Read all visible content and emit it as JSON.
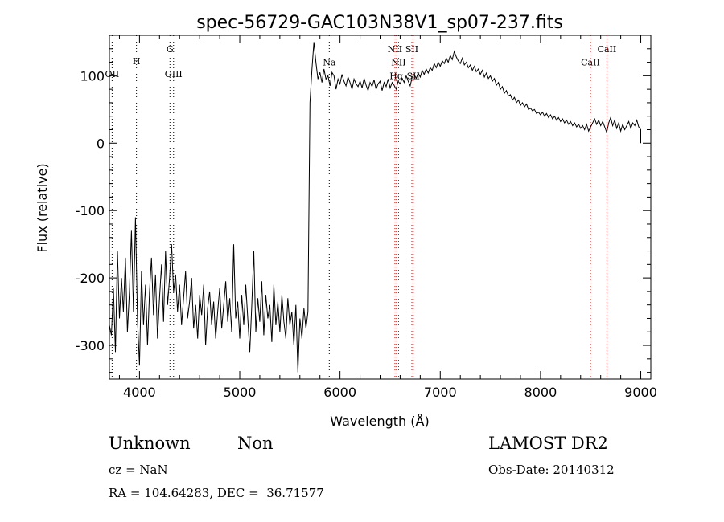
{
  "chart_data": {
    "type": "line",
    "title": "spec-56729-GAC103N38V1_sp07-237.fits",
    "xlabel": "Wavelength (Å)",
    "ylabel": "Flux (relative)",
    "xlim": [
      3700,
      9100
    ],
    "ylim": [
      -350,
      160
    ],
    "xticks": [
      4000,
      5000,
      6000,
      7000,
      8000,
      9000
    ],
    "yticks": [
      -300,
      -200,
      -100,
      0,
      100
    ],
    "grid": false,
    "series": [
      {
        "points": [
          [
            3700,
            -270
          ],
          [
            3720,
            -285
          ],
          [
            3740,
            -215
          ],
          [
            3760,
            -310
          ],
          [
            3780,
            -160
          ],
          [
            3800,
            -260
          ],
          [
            3820,
            -200
          ],
          [
            3840,
            -250
          ],
          [
            3860,
            -170
          ],
          [
            3880,
            -280
          ],
          [
            3900,
            -220
          ],
          [
            3920,
            -130
          ],
          [
            3940,
            -250
          ],
          [
            3960,
            -110
          ],
          [
            3980,
            -260
          ],
          [
            4000,
            -330
          ],
          [
            4020,
            -190
          ],
          [
            4040,
            -270
          ],
          [
            4060,
            -210
          ],
          [
            4080,
            -300
          ],
          [
            4100,
            -220
          ],
          [
            4120,
            -170
          ],
          [
            4140,
            -255
          ],
          [
            4160,
            -195
          ],
          [
            4180,
            -290
          ],
          [
            4200,
            -230
          ],
          [
            4220,
            -180
          ],
          [
            4240,
            -265
          ],
          [
            4260,
            -160
          ],
          [
            4280,
            -240
          ],
          [
            4300,
            -200
          ],
          [
            4320,
            -150
          ],
          [
            4340,
            -220
          ],
          [
            4360,
            -195
          ],
          [
            4380,
            -250
          ],
          [
            4400,
            -210
          ],
          [
            4420,
            -270
          ],
          [
            4440,
            -230
          ],
          [
            4460,
            -190
          ],
          [
            4480,
            -260
          ],
          [
            4500,
            -235
          ],
          [
            4520,
            -200
          ],
          [
            4540,
            -275
          ],
          [
            4560,
            -240
          ],
          [
            4580,
            -290
          ],
          [
            4600,
            -225
          ],
          [
            4620,
            -255
          ],
          [
            4640,
            -210
          ],
          [
            4660,
            -300
          ],
          [
            4680,
            -245
          ],
          [
            4700,
            -220
          ],
          [
            4720,
            -270
          ],
          [
            4740,
            -235
          ],
          [
            4760,
            -290
          ],
          [
            4780,
            -250
          ],
          [
            4800,
            -215
          ],
          [
            4820,
            -275
          ],
          [
            4840,
            -240
          ],
          [
            4860,
            -205
          ],
          [
            4880,
            -265
          ],
          [
            4900,
            -230
          ],
          [
            4920,
            -280
          ],
          [
            4940,
            -150
          ],
          [
            4960,
            -260
          ],
          [
            4980,
            -235
          ],
          [
            5000,
            -290
          ],
          [
            5020,
            -225
          ],
          [
            5040,
            -270
          ],
          [
            5060,
            -210
          ],
          [
            5080,
            -260
          ],
          [
            5100,
            -310
          ],
          [
            5120,
            -240
          ],
          [
            5140,
            -160
          ],
          [
            5160,
            -280
          ],
          [
            5180,
            -230
          ],
          [
            5200,
            -265
          ],
          [
            5220,
            -205
          ],
          [
            5240,
            -285
          ],
          [
            5260,
            -225
          ],
          [
            5280,
            -260
          ],
          [
            5300,
            -240
          ],
          [
            5320,
            -295
          ],
          [
            5340,
            -210
          ],
          [
            5360,
            -270
          ],
          [
            5380,
            -235
          ],
          [
            5400,
            -280
          ],
          [
            5420,
            -225
          ],
          [
            5440,
            -265
          ],
          [
            5460,
            -290
          ],
          [
            5480,
            -230
          ],
          [
            5500,
            -270
          ],
          [
            5520,
            -250
          ],
          [
            5540,
            -300
          ],
          [
            5560,
            -240
          ],
          [
            5580,
            -340
          ],
          [
            5600,
            -260
          ],
          [
            5620,
            -290
          ],
          [
            5640,
            -245
          ],
          [
            5660,
            -275
          ],
          [
            5680,
            -250
          ],
          [
            5700,
            60
          ],
          [
            5720,
            110
          ],
          [
            5740,
            150
          ],
          [
            5760,
            120
          ],
          [
            5780,
            95
          ],
          [
            5800,
            105
          ],
          [
            5820,
            90
          ],
          [
            5840,
            110
          ],
          [
            5860,
            95
          ],
          [
            5880,
            100
          ],
          [
            5900,
            85
          ],
          [
            5920,
            105
          ],
          [
            5940,
            100
          ],
          [
            5960,
            80
          ],
          [
            5980,
            95
          ],
          [
            6000,
            88
          ],
          [
            6020,
            102
          ],
          [
            6040,
            92
          ],
          [
            6060,
            85
          ],
          [
            6080,
            98
          ],
          [
            6100,
            90
          ],
          [
            6120,
            80
          ],
          [
            6140,
            95
          ],
          [
            6160,
            88
          ],
          [
            6180,
            84
          ],
          [
            6200,
            92
          ],
          [
            6220,
            82
          ],
          [
            6240,
            96
          ],
          [
            6260,
            86
          ],
          [
            6280,
            78
          ],
          [
            6300,
            90
          ],
          [
            6320,
            84
          ],
          [
            6340,
            94
          ],
          [
            6360,
            80
          ],
          [
            6380,
            88
          ],
          [
            6400,
            92
          ],
          [
            6420,
            78
          ],
          [
            6440,
            90
          ],
          [
            6460,
            84
          ],
          [
            6480,
            95
          ],
          [
            6500,
            82
          ],
          [
            6520,
            90
          ],
          [
            6540,
            86
          ],
          [
            6560,
            80
          ],
          [
            6580,
            92
          ],
          [
            6600,
            88
          ],
          [
            6620,
            96
          ],
          [
            6640,
            90
          ],
          [
            6660,
            100
          ],
          [
            6680,
            92
          ],
          [
            6700,
            85
          ],
          [
            6720,
            98
          ],
          [
            6740,
            102
          ],
          [
            6760,
            96
          ],
          [
            6780,
            104
          ],
          [
            6800,
            98
          ],
          [
            6820,
            108
          ],
          [
            6840,
            102
          ],
          [
            6860,
            110
          ],
          [
            6880,
            104
          ],
          [
            6900,
            112
          ],
          [
            6920,
            108
          ],
          [
            6940,
            118
          ],
          [
            6960,
            112
          ],
          [
            6980,
            120
          ],
          [
            7000,
            114
          ],
          [
            7020,
            122
          ],
          [
            7040,
            118
          ],
          [
            7060,
            126
          ],
          [
            7080,
            120
          ],
          [
            7100,
            130
          ],
          [
            7120,
            124
          ],
          [
            7140,
            136
          ],
          [
            7160,
            128
          ],
          [
            7180,
            122
          ],
          [
            7200,
            118
          ],
          [
            7220,
            126
          ],
          [
            7240,
            116
          ],
          [
            7260,
            120
          ],
          [
            7280,
            112
          ],
          [
            7300,
            116
          ],
          [
            7320,
            108
          ],
          [
            7340,
            114
          ],
          [
            7360,
            106
          ],
          [
            7380,
            110
          ],
          [
            7400,
            102
          ],
          [
            7420,
            108
          ],
          [
            7440,
            98
          ],
          [
            7460,
            104
          ],
          [
            7480,
            96
          ],
          [
            7500,
            100
          ],
          [
            7520,
            92
          ],
          [
            7540,
            96
          ],
          [
            7560,
            86
          ],
          [
            7580,
            90
          ],
          [
            7600,
            80
          ],
          [
            7620,
            84
          ],
          [
            7640,
            74
          ],
          [
            7660,
            78
          ],
          [
            7680,
            70
          ],
          [
            7700,
            72
          ],
          [
            7720,
            64
          ],
          [
            7740,
            68
          ],
          [
            7760,
            60
          ],
          [
            7780,
            64
          ],
          [
            7800,
            56
          ],
          [
            7820,
            60
          ],
          [
            7840,
            54
          ],
          [
            7860,
            58
          ],
          [
            7880,
            50
          ],
          [
            7900,
            52
          ],
          [
            7920,
            48
          ],
          [
            7940,
            50
          ],
          [
            7960,
            44
          ],
          [
            7980,
            46
          ],
          [
            8000,
            42
          ],
          [
            8020,
            46
          ],
          [
            8040,
            40
          ],
          [
            8060,
            44
          ],
          [
            8080,
            38
          ],
          [
            8100,
            42
          ],
          [
            8120,
            36
          ],
          [
            8140,
            40
          ],
          [
            8160,
            34
          ],
          [
            8180,
            38
          ],
          [
            8200,
            32
          ],
          [
            8220,
            36
          ],
          [
            8240,
            30
          ],
          [
            8260,
            34
          ],
          [
            8280,
            28
          ],
          [
            8300,
            32
          ],
          [
            8320,
            26
          ],
          [
            8340,
            30
          ],
          [
            8360,
            24
          ],
          [
            8380,
            28
          ],
          [
            8400,
            22
          ],
          [
            8420,
            26
          ],
          [
            8440,
            20
          ],
          [
            8460,
            28
          ],
          [
            8480,
            18
          ],
          [
            8500,
            24
          ],
          [
            8520,
            30
          ],
          [
            8540,
            36
          ],
          [
            8560,
            28
          ],
          [
            8580,
            34
          ],
          [
            8600,
            26
          ],
          [
            8620,
            32
          ],
          [
            8640,
            24
          ],
          [
            8660,
            16
          ],
          [
            8680,
            30
          ],
          [
            8700,
            38
          ],
          [
            8720,
            26
          ],
          [
            8740,
            34
          ],
          [
            8760,
            22
          ],
          [
            8780,
            30
          ],
          [
            8800,
            18
          ],
          [
            8820,
            28
          ],
          [
            8840,
            20
          ],
          [
            8860,
            26
          ],
          [
            8880,
            32
          ],
          [
            8900,
            22
          ],
          [
            8920,
            30
          ],
          [
            8940,
            26
          ],
          [
            8960,
            34
          ],
          [
            8980,
            24
          ],
          [
            9000,
            20
          ],
          [
            9000,
            0
          ]
        ]
      }
    ],
    "lines": [
      {
        "label": "OII",
        "x": 3727,
        "label_y": 103,
        "color": "#000000"
      },
      {
        "label": "H",
        "x": 3970,
        "label_y": 122,
        "color": "#000000"
      },
      {
        "label": "G",
        "x": 4304,
        "label_y": 140,
        "color": "#000000"
      },
      {
        "label": "OIII",
        "x": 4340,
        "label_y": 103,
        "color": "#000000"
      },
      {
        "label": "Na",
        "x": 5893,
        "label_y": 120,
        "color": "#000000"
      },
      {
        "label": "NII",
        "x": 6548,
        "label_y": 140,
        "color": "#cc0000"
      },
      {
        "label": "NII",
        "x": 6584,
        "label_y": 120,
        "color": "#cc0000"
      },
      {
        "label": "Hα",
        "x": 6563,
        "label_y": 100,
        "color": "#cc0000"
      },
      {
        "label": "SII",
        "x": 6717,
        "label_y": 140,
        "color": "#cc0000"
      },
      {
        "label": "SII",
        "x": 6731,
        "label_y": 100,
        "color": "#cc0000"
      },
      {
        "label": "CaII",
        "x": 8498,
        "label_y": 120,
        "color": "#cc0000"
      },
      {
        "label": "CaII",
        "x": 8662,
        "label_y": 140,
        "color": "#cc0000"
      }
    ]
  },
  "footer": {
    "class_label": "Unknown",
    "subclass_label": "Non",
    "cz": "cz = NaN",
    "coords": "RA = 104.64283, DEC =  36.71577",
    "survey": "LAMOST DR2",
    "obs_date": "Obs-Date: 20140312"
  }
}
